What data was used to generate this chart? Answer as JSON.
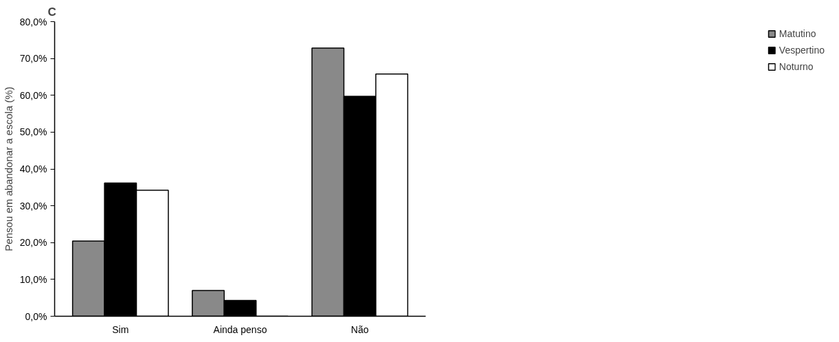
{
  "chart_data": {
    "type": "bar",
    "title": "C",
    "ylabel": "Pensou em abandonar a escola (%)",
    "categories": [
      "Sim",
      "Ainda penso",
      "Não"
    ],
    "series": [
      {
        "name": "Matutino",
        "color": "#898989",
        "values": [
          20.4,
          7.0,
          72.8
        ]
      },
      {
        "name": "Vespertino",
        "color": "#000000",
        "values": [
          36.2,
          4.3,
          59.7
        ]
      },
      {
        "name": "Noturno",
        "color": "#ffffff",
        "values": [
          34.2,
          0,
          65.8
        ]
      }
    ],
    "ylim": [
      0,
      80
    ],
    "yticks": [
      {
        "value": 0,
        "label": "0,0%"
      },
      {
        "value": 10,
        "label": "10,0%"
      },
      {
        "value": 20,
        "label": "20,0%"
      },
      {
        "value": 30,
        "label": "30,0%"
      },
      {
        "value": 40,
        "label": "40,0%"
      },
      {
        "value": 50,
        "label": "50,0%"
      },
      {
        "value": 60,
        "label": "60,0%"
      },
      {
        "value": 70,
        "label": "70,0%"
      },
      {
        "value": 80,
        "label": "80,0%"
      }
    ],
    "grid": false,
    "legend": "right"
  }
}
